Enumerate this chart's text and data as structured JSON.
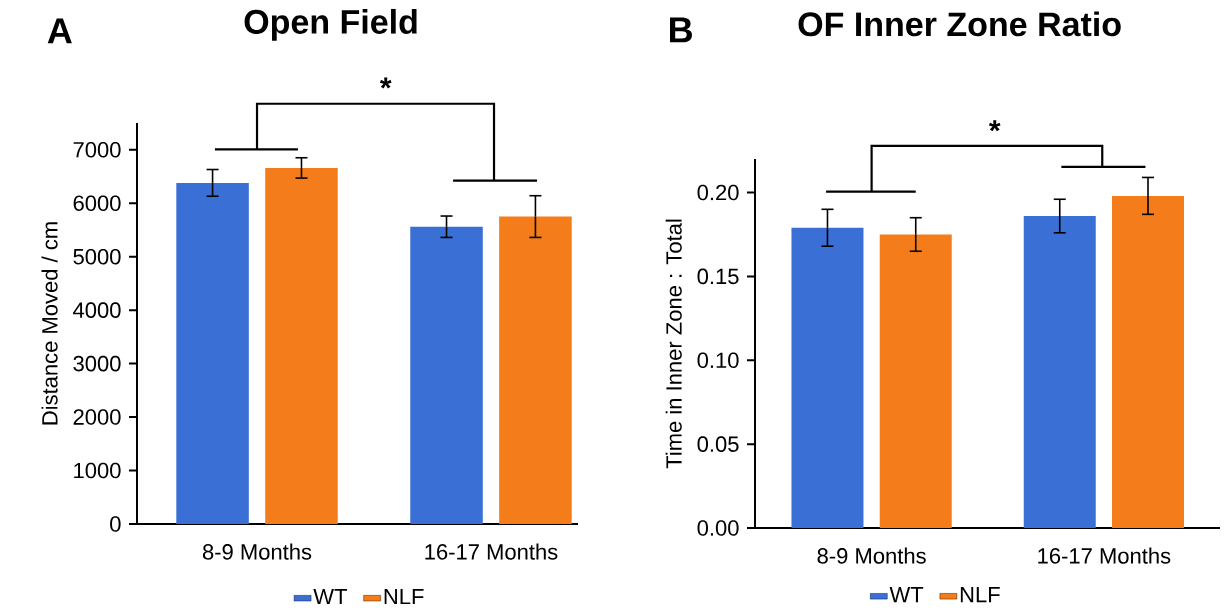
{
  "chart_data": [
    {
      "type": "bar",
      "title": "Open Field",
      "ylabel": "Distance Moved / cm",
      "categories": [
        "8-9 Months",
        "16-17 Months"
      ],
      "series": [
        {
          "name": "WT",
          "color": "#3a6fd6",
          "values": [
            6380,
            5560
          ],
          "errors": [
            250,
            200
          ]
        },
        {
          "name": "NLF",
          "color": "#f57c1a",
          "values": [
            6660,
            5750
          ],
          "errors": [
            190,
            390
          ]
        }
      ],
      "ylim": [
        0,
        7500
      ],
      "yticks": [
        0,
        1000,
        2000,
        3000,
        4000,
        5000,
        6000,
        7000
      ],
      "legend": "bottom",
      "annotations": [
        "A",
        "*"
      ]
    },
    {
      "type": "bar",
      "title": "OF Inner Zone Ratio",
      "ylabel": "Time in Inner Zone : Total",
      "categories": [
        "8-9 Months",
        "16-17 Months"
      ],
      "series": [
        {
          "name": "WT",
          "color": "#3a6fd6",
          "values": [
            0.179,
            0.186
          ],
          "errors": [
            0.011,
            0.01
          ]
        },
        {
          "name": "NLF",
          "color": "#f57c1a",
          "values": [
            0.175,
            0.198
          ],
          "errors": [
            0.01,
            0.011
          ]
        }
      ],
      "ylim": [
        0,
        0.22
      ],
      "yticks": [
        {
          "value": 0,
          "label": "0.00"
        },
        {
          "value": 0.05,
          "label": "0.05"
        },
        {
          "value": 0.1,
          "label": "0.10"
        },
        {
          "value": 0.15,
          "label": "0.15"
        },
        {
          "value": 0.2,
          "label": "0.20"
        }
      ],
      "legend": "bottom",
      "annotations": [
        "B",
        "*"
      ]
    }
  ]
}
